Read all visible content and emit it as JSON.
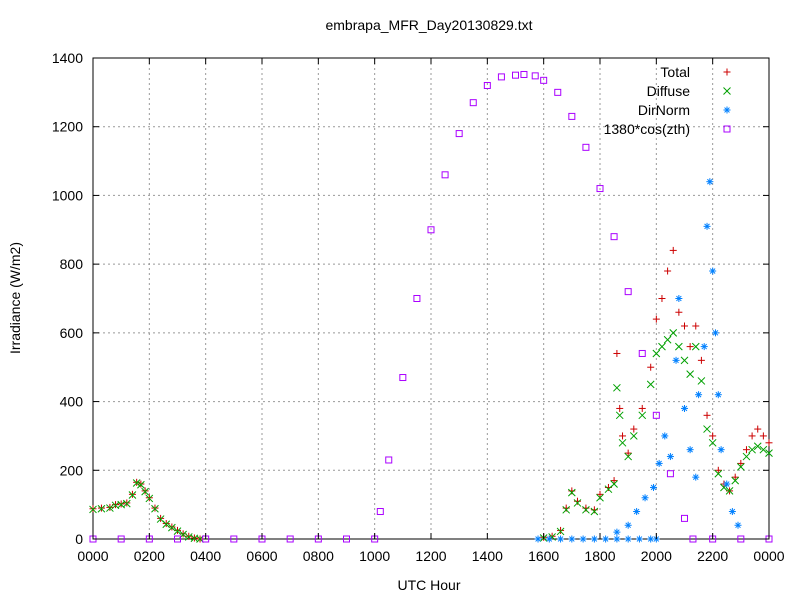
{
  "chart_data": {
    "type": "scatter",
    "title": "embrapa_MFR_Day20130829.txt",
    "xlabel": "UTC Hour",
    "ylabel": "Irradiance (W/m2)",
    "xlim": [
      0,
      24
    ],
    "ylim": [
      0,
      1400
    ],
    "xtick_labels": [
      "0000",
      "0200",
      "0400",
      "0600",
      "0800",
      "1000",
      "1200",
      "1400",
      "1600",
      "1800",
      "2000",
      "2200",
      "0000"
    ],
    "yticks": [
      0,
      200,
      400,
      600,
      800,
      1000,
      1200,
      1400
    ],
    "grid": true,
    "legend_position": "top-right",
    "series": [
      {
        "name": "Total",
        "marker": "+",
        "color": "#cc0000",
        "values": [
          [
            0,
            88
          ],
          [
            0.3,
            90
          ],
          [
            0.6,
            92
          ],
          [
            0.8,
            100
          ],
          [
            1.0,
            102
          ],
          [
            1.2,
            105
          ],
          [
            1.4,
            130
          ],
          [
            1.55,
            165
          ],
          [
            1.7,
            160
          ],
          [
            1.85,
            140
          ],
          [
            2.0,
            120
          ],
          [
            2.2,
            90
          ],
          [
            2.4,
            60
          ],
          [
            2.6,
            45
          ],
          [
            2.8,
            35
          ],
          [
            3.0,
            25
          ],
          [
            3.2,
            15
          ],
          [
            3.4,
            8
          ],
          [
            3.6,
            3
          ],
          [
            3.8,
            0
          ],
          [
            16.0,
            5
          ],
          [
            16.3,
            8
          ],
          [
            16.6,
            25
          ],
          [
            16.8,
            90
          ],
          [
            17.0,
            140
          ],
          [
            17.2,
            110
          ],
          [
            17.5,
            90
          ],
          [
            17.8,
            85
          ],
          [
            18.0,
            130
          ],
          [
            18.3,
            150
          ],
          [
            18.5,
            170
          ],
          [
            18.6,
            540
          ],
          [
            18.7,
            380
          ],
          [
            18.8,
            300
          ],
          [
            19.0,
            250
          ],
          [
            19.2,
            320
          ],
          [
            19.5,
            380
          ],
          [
            19.8,
            500
          ],
          [
            20.0,
            640
          ],
          [
            20.2,
            700
          ],
          [
            20.4,
            780
          ],
          [
            20.6,
            840
          ],
          [
            20.8,
            660
          ],
          [
            21.0,
            620
          ],
          [
            21.2,
            560
          ],
          [
            21.4,
            620
          ],
          [
            21.6,
            520
          ],
          [
            21.8,
            360
          ],
          [
            22.0,
            300
          ],
          [
            22.2,
            200
          ],
          [
            22.4,
            160
          ],
          [
            22.6,
            140
          ],
          [
            22.8,
            180
          ],
          [
            23.0,
            220
          ],
          [
            23.2,
            260
          ],
          [
            23.4,
            300
          ],
          [
            23.6,
            320
          ],
          [
            23.8,
            300
          ],
          [
            24,
            280
          ]
        ]
      },
      {
        "name": "Diffuse",
        "marker": "x",
        "color": "#00a000",
        "values": [
          [
            0,
            86
          ],
          [
            0.3,
            88
          ],
          [
            0.6,
            90
          ],
          [
            0.8,
            98
          ],
          [
            1.0,
            100
          ],
          [
            1.2,
            103
          ],
          [
            1.4,
            128
          ],
          [
            1.55,
            163
          ],
          [
            1.7,
            158
          ],
          [
            1.85,
            138
          ],
          [
            2.0,
            118
          ],
          [
            2.2,
            88
          ],
          [
            2.4,
            58
          ],
          [
            2.6,
            43
          ],
          [
            2.8,
            33
          ],
          [
            3.0,
            23
          ],
          [
            3.2,
            13
          ],
          [
            3.4,
            6
          ],
          [
            3.6,
            2
          ],
          [
            3.8,
            0
          ],
          [
            16.0,
            3
          ],
          [
            16.3,
            6
          ],
          [
            16.6,
            22
          ],
          [
            16.8,
            85
          ],
          [
            17.0,
            135
          ],
          [
            17.2,
            105
          ],
          [
            17.5,
            85
          ],
          [
            17.8,
            80
          ],
          [
            18.0,
            120
          ],
          [
            18.3,
            145
          ],
          [
            18.5,
            160
          ],
          [
            18.6,
            440
          ],
          [
            18.7,
            360
          ],
          [
            18.8,
            280
          ],
          [
            19.0,
            240
          ],
          [
            19.2,
            300
          ],
          [
            19.5,
            360
          ],
          [
            19.8,
            450
          ],
          [
            20.0,
            540
          ],
          [
            20.2,
            560
          ],
          [
            20.4,
            580
          ],
          [
            20.6,
            600
          ],
          [
            20.8,
            560
          ],
          [
            21.0,
            520
          ],
          [
            21.2,
            480
          ],
          [
            21.4,
            560
          ],
          [
            21.6,
            460
          ],
          [
            21.8,
            320
          ],
          [
            22.0,
            280
          ],
          [
            22.2,
            190
          ],
          [
            22.4,
            150
          ],
          [
            22.6,
            140
          ],
          [
            22.8,
            170
          ],
          [
            23.0,
            210
          ],
          [
            23.2,
            240
          ],
          [
            23.4,
            260
          ],
          [
            23.6,
            270
          ],
          [
            23.8,
            260
          ],
          [
            24,
            250
          ]
        ]
      },
      {
        "name": "DirNorm",
        "marker": "*",
        "color": "#0080ff",
        "values": [
          [
            15.8,
            0
          ],
          [
            16.2,
            0
          ],
          [
            16.6,
            0
          ],
          [
            17.0,
            0
          ],
          [
            17.4,
            0
          ],
          [
            17.8,
            0
          ],
          [
            18.2,
            0
          ],
          [
            18.6,
            0
          ],
          [
            19.0,
            0
          ],
          [
            19.4,
            0
          ],
          [
            19.8,
            0
          ],
          [
            20.0,
            0
          ],
          [
            18.6,
            20
          ],
          [
            19.0,
            40
          ],
          [
            19.3,
            80
          ],
          [
            19.6,
            120
          ],
          [
            19.9,
            150
          ],
          [
            20.1,
            220
          ],
          [
            20.3,
            300
          ],
          [
            20.5,
            240
          ],
          [
            20.7,
            520
          ],
          [
            20.8,
            700
          ],
          [
            21.0,
            380
          ],
          [
            21.2,
            260
          ],
          [
            21.4,
            180
          ],
          [
            21.5,
            420
          ],
          [
            21.7,
            560
          ],
          [
            21.8,
            910
          ],
          [
            21.9,
            1040
          ],
          [
            22.0,
            780
          ],
          [
            22.1,
            600
          ],
          [
            22.2,
            420
          ],
          [
            22.3,
            260
          ],
          [
            22.5,
            160
          ],
          [
            22.7,
            80
          ],
          [
            22.9,
            40
          ]
        ]
      },
      {
        "name": "1380*cos(zth)",
        "marker": "square",
        "color": "#aa00ff",
        "values": [
          [
            0,
            0
          ],
          [
            1,
            0
          ],
          [
            2,
            0
          ],
          [
            3,
            0
          ],
          [
            4,
            0
          ],
          [
            5,
            0
          ],
          [
            6,
            0
          ],
          [
            7,
            0
          ],
          [
            8,
            0
          ],
          [
            9,
            0
          ],
          [
            10,
            0
          ],
          [
            10.2,
            80
          ],
          [
            10.5,
            230
          ],
          [
            11.0,
            470
          ],
          [
            11.5,
            700
          ],
          [
            12.0,
            900
          ],
          [
            12.5,
            1060
          ],
          [
            13.0,
            1180
          ],
          [
            13.5,
            1270
          ],
          [
            14.0,
            1320
          ],
          [
            14.5,
            1345
          ],
          [
            15.0,
            1350
          ],
          [
            15.3,
            1352
          ],
          [
            15.7,
            1348
          ],
          [
            16.0,
            1335
          ],
          [
            16.5,
            1300
          ],
          [
            17.0,
            1230
          ],
          [
            17.5,
            1140
          ],
          [
            18.0,
            1020
          ],
          [
            18.5,
            880
          ],
          [
            19.0,
            720
          ],
          [
            19.5,
            540
          ],
          [
            20.0,
            360
          ],
          [
            20.5,
            190
          ],
          [
            21.0,
            60
          ],
          [
            21.3,
            0
          ],
          [
            22,
            0
          ],
          [
            23,
            0
          ],
          [
            24,
            0
          ]
        ]
      }
    ]
  }
}
